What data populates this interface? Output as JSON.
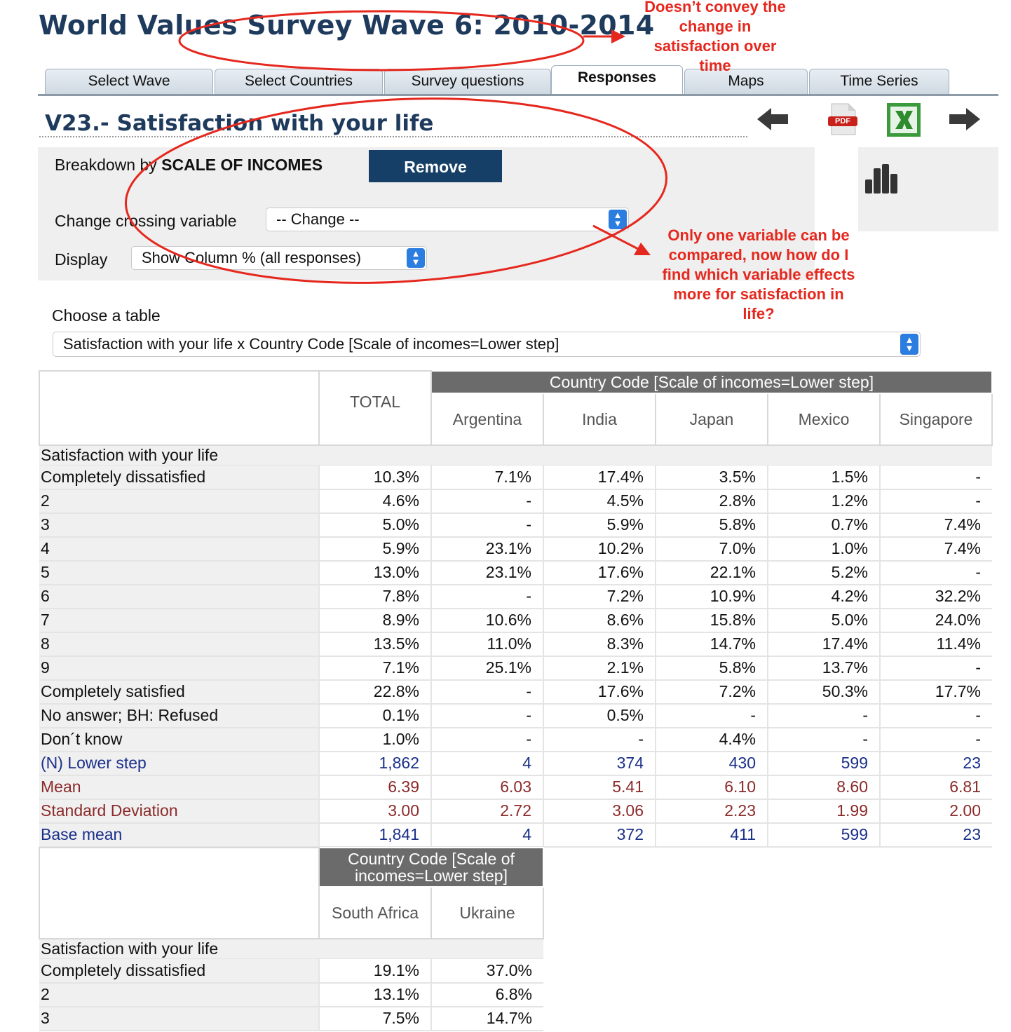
{
  "header": {
    "title": "World Values Survey Wave 6: 2010-2014"
  },
  "tabs": [
    {
      "label": "Select Wave",
      "active": false
    },
    {
      "label": "Select Countries",
      "active": false
    },
    {
      "label": "Survey questions",
      "active": false
    },
    {
      "label": "Responses",
      "active": true
    },
    {
      "label": "Maps",
      "active": false
    },
    {
      "label": "Time Series",
      "active": false
    }
  ],
  "variable": {
    "title": "V23.- Satisfaction with your life"
  },
  "toolbar": {
    "icons": [
      "arrow-left-icon",
      "pdf-icon",
      "excel-icon",
      "arrow-right-icon",
      "bar-chart-icon"
    ],
    "pdf_text": "PDF"
  },
  "breakdown": {
    "prefix": "Breakdown by ",
    "variable": "SCALE OF INCOMES",
    "remove_label": "Remove"
  },
  "crossing": {
    "label": "Change crossing variable",
    "value": "-- Change --"
  },
  "display": {
    "label": "Display",
    "value": "Show Column % (all responses)"
  },
  "table_chooser": {
    "label": "Choose a table",
    "value": "Satisfaction with your life x Country Code [Scale of incomes=Lower step]"
  },
  "table1": {
    "total_header": "TOTAL",
    "group_header": "Country Code [Scale of incomes=Lower step]",
    "columns": [
      "Argentina",
      "India",
      "Japan",
      "Mexico",
      "Singapore"
    ],
    "section_label": "Satisfaction with your life",
    "rows": [
      {
        "label": "Completely dissatisfied",
        "values": [
          "10.3%",
          "7.1%",
          "17.4%",
          "3.5%",
          "1.5%",
          "-"
        ]
      },
      {
        "label": "2",
        "values": [
          "4.6%",
          "-",
          "4.5%",
          "2.8%",
          "1.2%",
          "-"
        ]
      },
      {
        "label": "3",
        "values": [
          "5.0%",
          "-",
          "5.9%",
          "5.8%",
          "0.7%",
          "7.4%"
        ]
      },
      {
        "label": "4",
        "values": [
          "5.9%",
          "23.1%",
          "10.2%",
          "7.0%",
          "1.0%",
          "7.4%"
        ]
      },
      {
        "label": "5",
        "values": [
          "13.0%",
          "23.1%",
          "17.6%",
          "22.1%",
          "5.2%",
          "-"
        ]
      },
      {
        "label": "6",
        "values": [
          "7.8%",
          "-",
          "7.2%",
          "10.9%",
          "4.2%",
          "32.2%"
        ]
      },
      {
        "label": "7",
        "values": [
          "8.9%",
          "10.6%",
          "8.6%",
          "15.8%",
          "5.0%",
          "24.0%"
        ]
      },
      {
        "label": "8",
        "values": [
          "13.5%",
          "11.0%",
          "8.3%",
          "14.7%",
          "17.4%",
          "11.4%"
        ]
      },
      {
        "label": "9",
        "values": [
          "7.1%",
          "25.1%",
          "2.1%",
          "5.8%",
          "13.7%",
          "-"
        ]
      },
      {
        "label": "Completely satisfied",
        "values": [
          "22.8%",
          "-",
          "17.6%",
          "7.2%",
          "50.3%",
          "17.7%"
        ]
      },
      {
        "label": "No answer; BH: Refused",
        "values": [
          "0.1%",
          "-",
          "0.5%",
          "-",
          "-",
          "-"
        ]
      },
      {
        "label": "Don´t know",
        "values": [
          "1.0%",
          "-",
          "-",
          "4.4%",
          "-",
          "-"
        ]
      },
      {
        "label": "(N) Lower step",
        "values": [
          "1,862",
          "4",
          "374",
          "430",
          "599",
          "23"
        ],
        "style": "blue"
      },
      {
        "label": "Mean",
        "values": [
          "6.39",
          "6.03",
          "5.41",
          "6.10",
          "8.60",
          "6.81"
        ],
        "style": "red"
      },
      {
        "label": "Standard Deviation",
        "values": [
          "3.00",
          "2.72",
          "3.06",
          "2.23",
          "1.99",
          "2.00"
        ],
        "style": "red"
      },
      {
        "label": "Base mean",
        "values": [
          "1,841",
          "4",
          "372",
          "411",
          "599",
          "23"
        ],
        "style": "blue"
      }
    ]
  },
  "table2": {
    "group_header": "Country Code [Scale of incomes=Lower step]",
    "columns": [
      "South Africa",
      "Ukraine"
    ],
    "section_label": "Satisfaction with your life",
    "rows": [
      {
        "label": "Completely dissatisfied",
        "values": [
          "19.1%",
          "37.0%"
        ]
      },
      {
        "label": "2",
        "values": [
          "13.1%",
          "6.8%"
        ]
      },
      {
        "label": "3",
        "values": [
          "7.5%",
          "14.7%"
        ]
      }
    ]
  },
  "annotations": {
    "note1": "Doesn’t convey the change in satisfaction over time",
    "note2": "Only one variable can be compared, now how do I find which variable effects more for satisfaction in life?"
  },
  "colors": {
    "title": "#1e3a5c",
    "annotation": "#e5281e",
    "group_header": "#6b6b6b",
    "remove_button": "#153f66",
    "n_row": "#1a2f8a",
    "mean_row": "#8b2a2a"
  }
}
